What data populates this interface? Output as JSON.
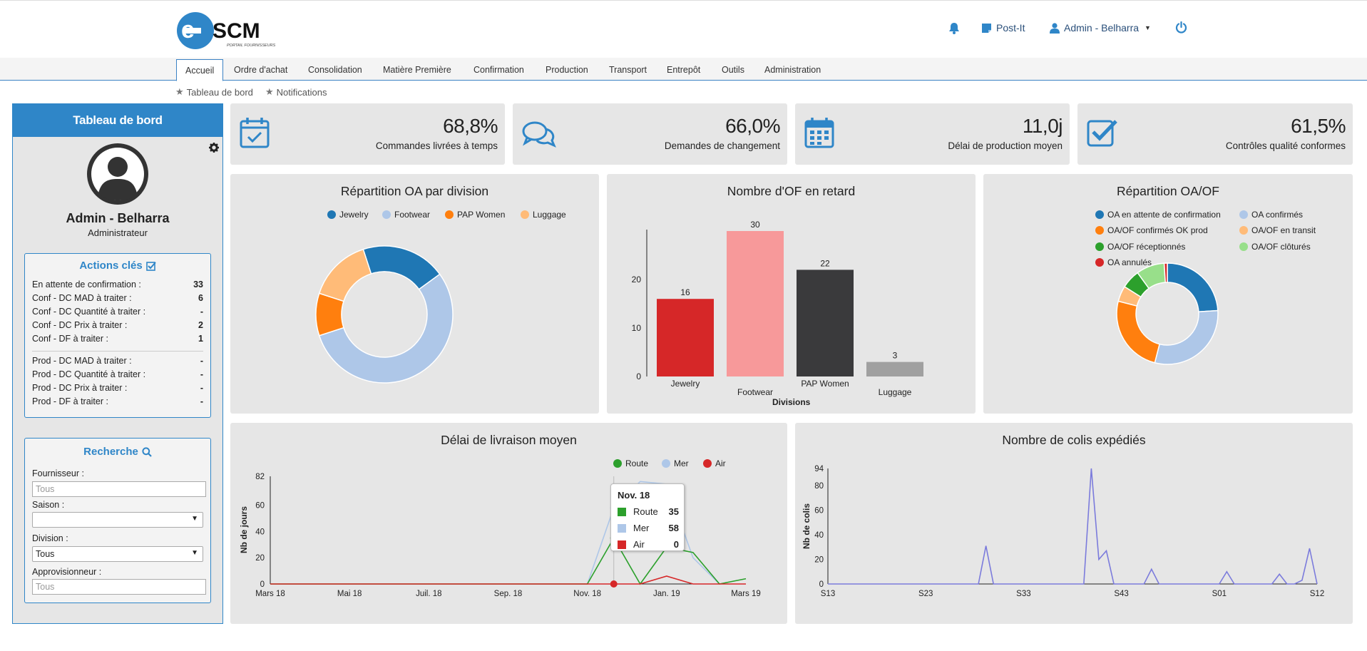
{
  "header": {
    "logo_text": "e-SCM",
    "logo_subtitle": "PORTAIL FOURNISSEURS",
    "postit_label": "Post-It",
    "user_label": "Admin - Belharra"
  },
  "nav": {
    "tabs": [
      "Accueil",
      "Ordre d'achat",
      "Consolidation",
      "Matière Première",
      "Confirmation",
      "Production",
      "Transport",
      "Entrepôt",
      "Outils",
      "Administration"
    ],
    "crumbs": [
      "Tableau de bord",
      "Notifications"
    ]
  },
  "sidebar": {
    "title": "Tableau de bord",
    "user_name": "Admin - Belharra",
    "user_role": "Administrateur",
    "actions": {
      "title": "Actions clés",
      "rows": [
        {
          "label": "En attente de confirmation :",
          "value": "33"
        },
        {
          "label": "Conf - DC MAD à traiter :",
          "value": "6"
        },
        {
          "label": "Conf - DC Quantité à traiter :",
          "value": "-"
        },
        {
          "label": "Conf - DC Prix à traiter :",
          "value": "2"
        },
        {
          "label": "Conf - DF à traiter :",
          "value": "1"
        },
        {
          "label": "Prod - DC MAD à traiter :",
          "value": "-"
        },
        {
          "label": "Prod - DC Quantité à traiter :",
          "value": "-"
        },
        {
          "label": "Prod - DC Prix à traiter :",
          "value": "-"
        },
        {
          "label": "Prod - DF à traiter :",
          "value": "-"
        }
      ]
    },
    "search": {
      "title": "Recherche",
      "fournisseur_label": "Fournisseur :",
      "fournisseur_placeholder": "Tous",
      "saison_label": "Saison :",
      "saison_value": "",
      "division_label": "Division :",
      "division_value": "Tous",
      "appro_label": "Approvisionneur :",
      "appro_placeholder": "Tous"
    }
  },
  "kpis": [
    {
      "value": "68,8%",
      "label": "Commandes livrées à temps"
    },
    {
      "value": "66,0%",
      "label": "Demandes de changement"
    },
    {
      "value": "11,0j",
      "label": "Délai de production moyen"
    },
    {
      "value": "61,5%",
      "label": "Contrôles qualité conformes"
    }
  ],
  "colors": {
    "jewelry": "#1f77b4",
    "footwear": "#aec7e8",
    "pap": "#ff7f0e",
    "luggage": "#ffbb78",
    "red": "#d62728",
    "pink": "#f7999a",
    "dark": "#3a3a3c",
    "grey": "#a0a0a0",
    "green": "#2ca02c",
    "lightgreen": "#98df8a",
    "lightblue": "#aec7e8",
    "purple": "#7b7bdc"
  },
  "chart_data": [
    {
      "type": "pie",
      "title": "Répartition OA par division",
      "categories": [
        "Jewelry",
        "Footwear",
        "PAP Women",
        "Luggage"
      ],
      "values": [
        20,
        55,
        10,
        15
      ]
    },
    {
      "type": "bar",
      "title": "Nombre d'OF en retard",
      "categories": [
        "Jewelry",
        "Footwear",
        "PAP Women",
        "Luggage"
      ],
      "values": [
        16,
        30,
        22,
        3
      ],
      "xlabel": "Divisions",
      "yticks": [
        0,
        10,
        20
      ],
      "ylim": [
        0,
        30
      ]
    },
    {
      "type": "pie",
      "title": "Répartition OA/OF",
      "categories": [
        "OA en attente de confirmation",
        "OA confirmés",
        "OA/OF confirmés OK prod",
        "OA/OF en transit",
        "OA/OF réceptionnés",
        "OA/OF clôturés",
        "OA annulés"
      ],
      "values": [
        24,
        30,
        25,
        5,
        6,
        9,
        1
      ]
    },
    {
      "type": "line",
      "title": "Délai de livraison moyen",
      "ylabel": "Nb de jours",
      "x_ticks": [
        "Mars 18",
        "Mai 18",
        "Juil. 18",
        "Sep. 18",
        "Nov. 18",
        "Jan. 19",
        "Mars 19"
      ],
      "yticks": [
        0,
        20,
        40,
        60,
        82
      ],
      "ylim": [
        0,
        82
      ],
      "series": [
        {
          "name": "Route",
          "values": [
            0,
            0,
            0,
            0,
            0,
            0,
            0,
            0,
            0,
            0,
            0,
            0,
            0,
            35,
            0,
            28,
            24,
            0,
            4
          ]
        },
        {
          "name": "Mer",
          "values": [
            null,
            null,
            null,
            null,
            null,
            null,
            null,
            null,
            null,
            null,
            null,
            null,
            0,
            58,
            78,
            76,
            20,
            0,
            null
          ]
        },
        {
          "name": "Air",
          "values": [
            0,
            0,
            0,
            0,
            0,
            0,
            0,
            0,
            0,
            0,
            0,
            0,
            0,
            0,
            0,
            6,
            0,
            0,
            0
          ]
        }
      ],
      "tooltip": {
        "title": "Nov. 18",
        "rows": [
          {
            "name": "Route",
            "value": "35"
          },
          {
            "name": "Mer",
            "value": "58"
          },
          {
            "name": "Air",
            "value": "0"
          }
        ]
      }
    },
    {
      "type": "line",
      "title": "Nombre de colis expédiés",
      "ylabel": "Nb de colis",
      "x_ticks": [
        "S13",
        "S23",
        "S33",
        "S43",
        "S01",
        "S12"
      ],
      "yticks": [
        0,
        20,
        40,
        60,
        80,
        94
      ],
      "ylim": [
        0,
        94
      ],
      "series": [
        {
          "name": "Colis",
          "values": [
            0,
            0,
            0,
            0,
            0,
            0,
            0,
            0,
            0,
            0,
            0,
            0,
            0,
            0,
            0,
            0,
            0,
            0,
            0,
            0,
            0,
            31,
            0,
            0,
            0,
            0,
            0,
            0,
            0,
            0,
            0,
            0,
            0,
            0,
            0,
            94,
            20,
            27,
            0,
            0,
            0,
            0,
            0,
            12,
            0,
            0,
            0,
            0,
            0,
            0,
            0,
            0,
            0,
            10,
            0,
            0,
            0,
            0,
            0,
            0,
            8,
            0,
            0,
            3,
            29,
            0
          ]
        }
      ]
    }
  ]
}
